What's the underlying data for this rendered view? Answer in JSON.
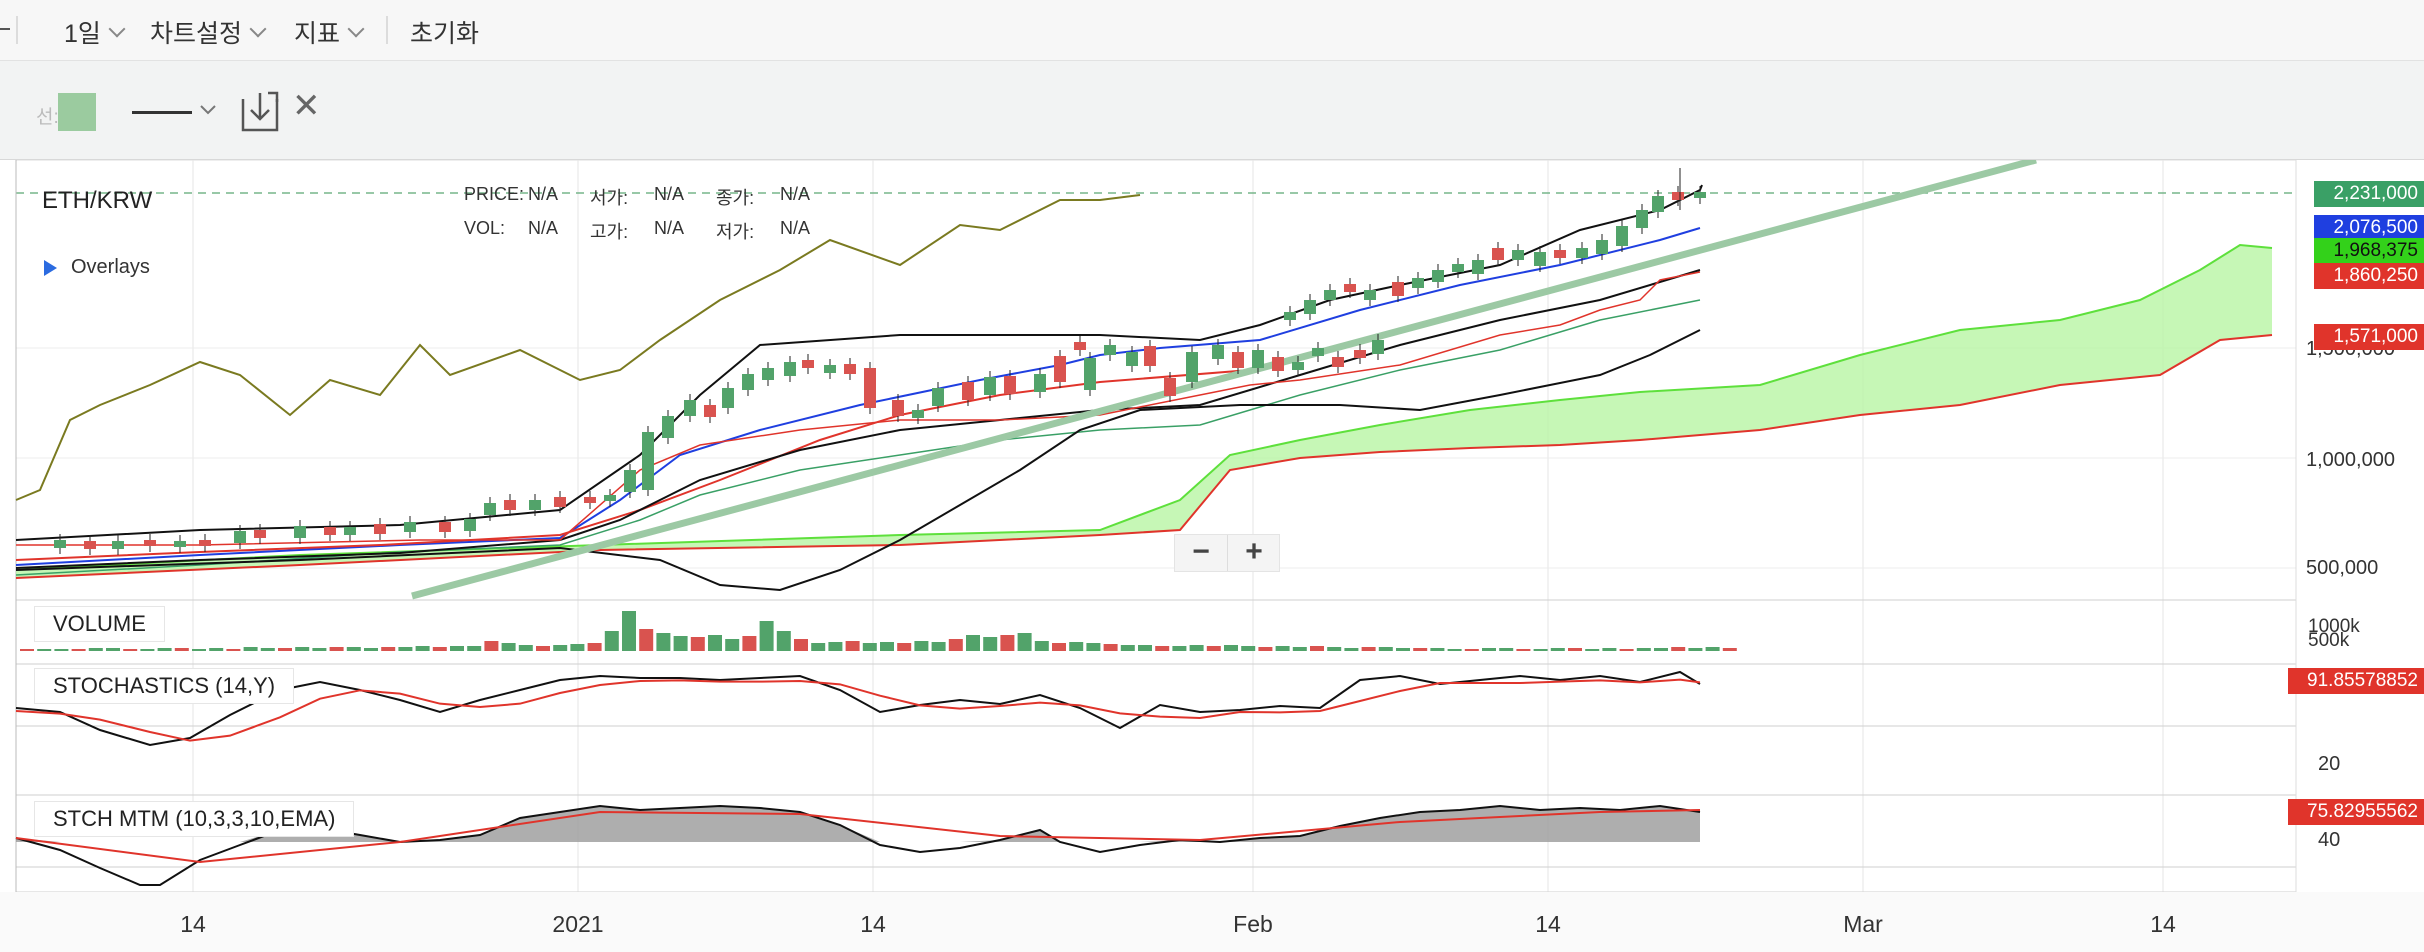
{
  "toolbar": {
    "period": "1일",
    "chart_settings": "차트설정",
    "indicators": "지표",
    "reset": "초기화"
  },
  "draw": {
    "line_label": "선:",
    "swatch_color": "#9bcb9f"
  },
  "header": {
    "symbol": "ETH/KRW",
    "price_label": "PRICE:",
    "price_value": "N/A",
    "open_label": "서가:",
    "open_value": "N/A",
    "close_label": "종가:",
    "close_value": "N/A",
    "vol_label": "VOL:",
    "vol_value": "N/A",
    "high_label": "고가:",
    "high_value": "N/A",
    "low_label": "저가:",
    "low_value": "N/A",
    "overlays": "Overlays"
  },
  "price_axis": [
    "1,500,000",
    "1,000,000",
    "500,000"
  ],
  "price_tags": [
    {
      "value": "2,231,000",
      "color": "#3aa066"
    },
    {
      "value": "2,076,500",
      "color": "#1f3fe0"
    },
    {
      "value": "1,968,375",
      "color": "#33d11a"
    },
    {
      "value": "1,860,250",
      "color": "#e0342b"
    },
    {
      "value": "1,571,000",
      "color": "#e0342b"
    }
  ],
  "volume": {
    "title": "VOLUME",
    "axis": [
      "1000k",
      "500k"
    ]
  },
  "stoch": {
    "title": "STOCHASTICS (14,Y)",
    "value": "91.85578852",
    "axis": [
      "20"
    ]
  },
  "mtm": {
    "title": "STCH MTM (10,3,3,10,EMA)",
    "value": "75.82955562",
    "axis": [
      "40"
    ]
  },
  "x_axis": [
    "14",
    "2021",
    "14",
    "Feb",
    "14",
    "Mar",
    "14"
  ],
  "colors": {
    "up": "#52a36a",
    "down": "#d9534f",
    "cloud": "#b8f5a4",
    "trend": "#9cc9a4"
  }
}
